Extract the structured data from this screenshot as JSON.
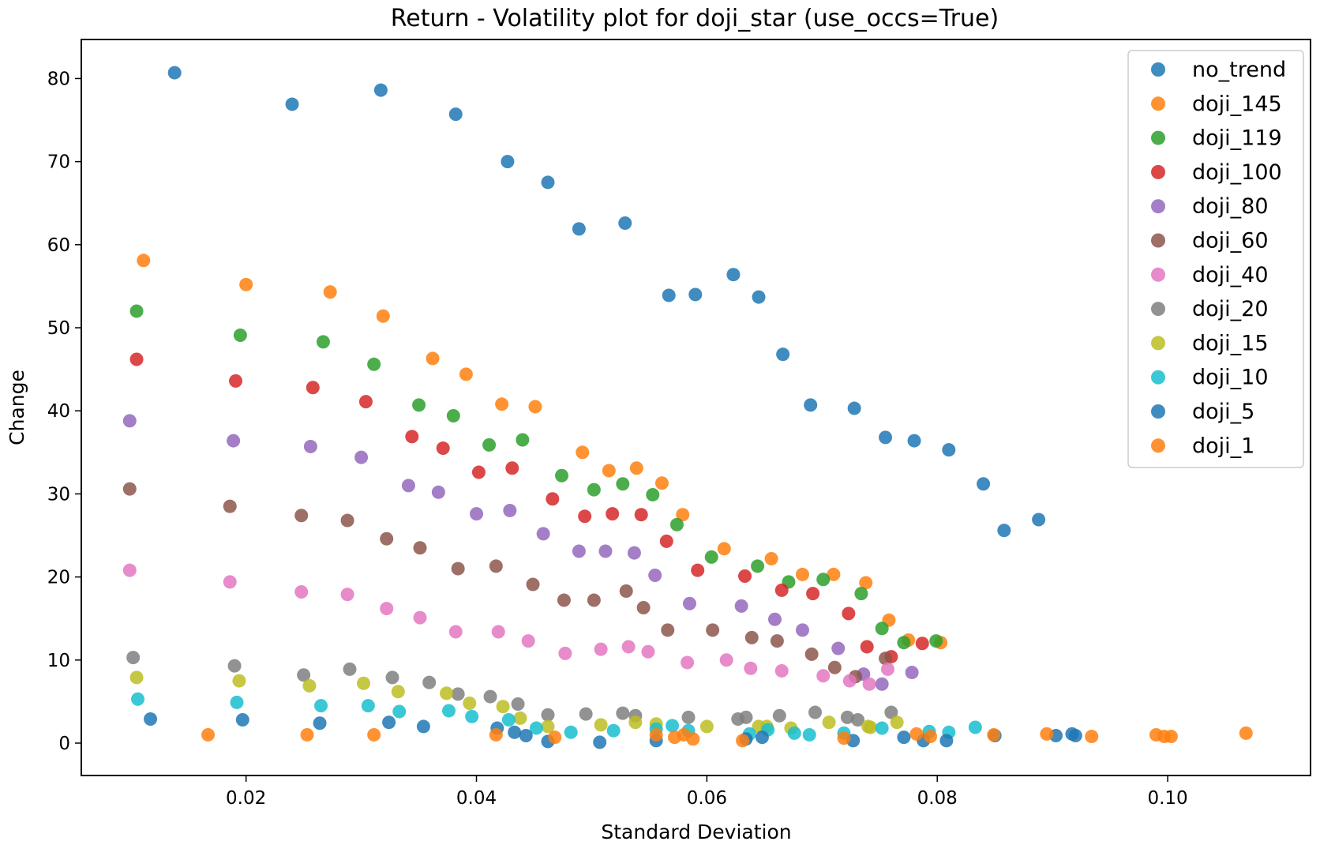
{
  "chart_data": {
    "type": "scatter",
    "title": "Return - Volatility plot for doji_star (use_occs=True)",
    "xlabel": "Standard Deviation",
    "ylabel": "Change",
    "xlim": [
      0.0057,
      0.1124
    ],
    "ylim": [
      -3.9,
      84.7
    ],
    "x_ticks": [
      "0.02",
      "0.04",
      "0.06",
      "0.08",
      "0.10"
    ],
    "y_ticks": [
      "0",
      "10",
      "20",
      "30",
      "40",
      "50",
      "60",
      "70",
      "80"
    ],
    "grid": false,
    "legend_position": "top-right",
    "series": [
      {
        "name": "no_trend",
        "color": "#1f77b4",
        "points": [
          [
            0.0138,
            80.7
          ],
          [
            0.024,
            76.9
          ],
          [
            0.0317,
            78.6
          ],
          [
            0.0382,
            75.7
          ],
          [
            0.0427,
            70.0
          ],
          [
            0.0462,
            67.5
          ],
          [
            0.0489,
            61.9
          ],
          [
            0.0529,
            62.6
          ],
          [
            0.0567,
            53.9
          ],
          [
            0.059,
            54.0
          ],
          [
            0.0623,
            56.4
          ],
          [
            0.0645,
            53.7
          ],
          [
            0.0666,
            46.8
          ],
          [
            0.069,
            40.7
          ],
          [
            0.0728,
            40.3
          ],
          [
            0.0755,
            36.8
          ],
          [
            0.078,
            36.4
          ],
          [
            0.081,
            35.3
          ],
          [
            0.084,
            31.2
          ],
          [
            0.0858,
            25.6
          ],
          [
            0.0888,
            26.9
          ]
        ]
      },
      {
        "name": "doji_145",
        "color": "#ff7f0e",
        "points": [
          [
            0.0111,
            58.1
          ],
          [
            0.02,
            55.2
          ],
          [
            0.0273,
            54.3
          ],
          [
            0.0319,
            51.4
          ],
          [
            0.0362,
            46.3
          ],
          [
            0.0391,
            44.4
          ],
          [
            0.0422,
            40.8
          ],
          [
            0.0451,
            40.5
          ],
          [
            0.0492,
            35.0
          ],
          [
            0.0515,
            32.8
          ],
          [
            0.0539,
            33.1
          ],
          [
            0.0561,
            31.3
          ],
          [
            0.0579,
            27.5
          ],
          [
            0.0615,
            23.4
          ],
          [
            0.0656,
            22.2
          ],
          [
            0.0683,
            20.3
          ],
          [
            0.071,
            20.3
          ],
          [
            0.0738,
            19.3
          ],
          [
            0.0758,
            14.8
          ],
          [
            0.0775,
            12.4
          ],
          [
            0.0803,
            12.1
          ]
        ]
      },
      {
        "name": "doji_119",
        "color": "#2ca02c",
        "points": [
          [
            0.0105,
            52.0
          ],
          [
            0.0195,
            49.1
          ],
          [
            0.0267,
            48.3
          ],
          [
            0.0311,
            45.6
          ],
          [
            0.035,
            40.7
          ],
          [
            0.038,
            39.4
          ],
          [
            0.0411,
            35.9
          ],
          [
            0.044,
            36.5
          ],
          [
            0.0474,
            32.2
          ],
          [
            0.0502,
            30.5
          ],
          [
            0.0527,
            31.2
          ],
          [
            0.0553,
            29.9
          ],
          [
            0.0574,
            26.3
          ],
          [
            0.0604,
            22.4
          ],
          [
            0.0644,
            21.3
          ],
          [
            0.0671,
            19.4
          ],
          [
            0.0701,
            19.7
          ],
          [
            0.0734,
            18.0
          ],
          [
            0.0752,
            13.8
          ],
          [
            0.0771,
            12.1
          ],
          [
            0.0799,
            12.3
          ]
        ]
      },
      {
        "name": "doji_100",
        "color": "#d62728",
        "points": [
          [
            0.0105,
            46.2
          ],
          [
            0.0191,
            43.6
          ],
          [
            0.0258,
            42.8
          ],
          [
            0.0304,
            41.1
          ],
          [
            0.0344,
            36.9
          ],
          [
            0.0371,
            35.5
          ],
          [
            0.0402,
            32.6
          ],
          [
            0.0431,
            33.1
          ],
          [
            0.0466,
            29.4
          ],
          [
            0.0494,
            27.3
          ],
          [
            0.0518,
            27.6
          ],
          [
            0.0543,
            27.5
          ],
          [
            0.0565,
            24.3
          ],
          [
            0.0592,
            20.8
          ],
          [
            0.0633,
            20.1
          ],
          [
            0.0665,
            18.4
          ],
          [
            0.0692,
            18.0
          ],
          [
            0.0723,
            15.6
          ],
          [
            0.0739,
            11.6
          ],
          [
            0.076,
            10.4
          ],
          [
            0.0787,
            12.0
          ]
        ]
      },
      {
        "name": "doji_80",
        "color": "#9467bd",
        "points": [
          [
            0.0099,
            38.8
          ],
          [
            0.0189,
            36.4
          ],
          [
            0.0256,
            35.7
          ],
          [
            0.03,
            34.4
          ],
          [
            0.0341,
            31.0
          ],
          [
            0.0367,
            30.2
          ],
          [
            0.04,
            27.6
          ],
          [
            0.0429,
            28.0
          ],
          [
            0.0458,
            25.2
          ],
          [
            0.0489,
            23.1
          ],
          [
            0.0512,
            23.1
          ],
          [
            0.0537,
            22.9
          ],
          [
            0.0555,
            20.2
          ],
          [
            0.0585,
            16.8
          ],
          [
            0.063,
            16.5
          ],
          [
            0.0659,
            14.9
          ],
          [
            0.0683,
            13.6
          ],
          [
            0.0714,
            11.4
          ],
          [
            0.0736,
            8.3
          ],
          [
            0.0752,
            7.1
          ],
          [
            0.0778,
            8.5
          ]
        ]
      },
      {
        "name": "doji_60",
        "color": "#8c564b",
        "points": [
          [
            0.0099,
            30.6
          ],
          [
            0.0186,
            28.5
          ],
          [
            0.0248,
            27.4
          ],
          [
            0.0288,
            26.8
          ],
          [
            0.0322,
            24.6
          ],
          [
            0.0351,
            23.5
          ],
          [
            0.0384,
            21.0
          ],
          [
            0.0417,
            21.3
          ],
          [
            0.0449,
            19.1
          ],
          [
            0.0476,
            17.2
          ],
          [
            0.0502,
            17.2
          ],
          [
            0.053,
            18.3
          ],
          [
            0.0545,
            16.3
          ],
          [
            0.0566,
            13.6
          ],
          [
            0.0605,
            13.6
          ],
          [
            0.0639,
            12.7
          ],
          [
            0.0661,
            12.3
          ],
          [
            0.0691,
            10.7
          ],
          [
            0.0729,
            8.0
          ],
          [
            0.0711,
            9.1
          ],
          [
            0.0755,
            10.2
          ]
        ]
      },
      {
        "name": "doji_40",
        "color": "#e377c2",
        "points": [
          [
            0.0099,
            20.8
          ],
          [
            0.0186,
            19.4
          ],
          [
            0.0248,
            18.2
          ],
          [
            0.0288,
            17.9
          ],
          [
            0.0322,
            16.2
          ],
          [
            0.0351,
            15.1
          ],
          [
            0.0382,
            13.4
          ],
          [
            0.0419,
            13.4
          ],
          [
            0.0445,
            12.3
          ],
          [
            0.0477,
            10.8
          ],
          [
            0.0508,
            11.3
          ],
          [
            0.0532,
            11.6
          ],
          [
            0.0549,
            11.0
          ],
          [
            0.0583,
            9.7
          ],
          [
            0.0617,
            10.0
          ],
          [
            0.0638,
            9.0
          ],
          [
            0.0665,
            8.7
          ],
          [
            0.0701,
            8.1
          ],
          [
            0.0724,
            7.5
          ],
          [
            0.0741,
            7.1
          ],
          [
            0.0757,
            8.9
          ]
        ]
      },
      {
        "name": "doji_20",
        "color": "#7f7f7f",
        "points": [
          [
            0.0102,
            10.3
          ],
          [
            0.019,
            9.3
          ],
          [
            0.025,
            8.2
          ],
          [
            0.029,
            8.9
          ],
          [
            0.0327,
            7.9
          ],
          [
            0.0359,
            7.3
          ],
          [
            0.0384,
            5.9
          ],
          [
            0.0412,
            5.6
          ],
          [
            0.0436,
            4.7
          ],
          [
            0.0462,
            3.4
          ],
          [
            0.0495,
            3.5
          ],
          [
            0.0527,
            3.6
          ],
          [
            0.0538,
            3.3
          ],
          [
            0.0584,
            3.1
          ],
          [
            0.0627,
            2.9
          ],
          [
            0.0634,
            3.1
          ],
          [
            0.0663,
            3.3
          ],
          [
            0.0694,
            3.7
          ],
          [
            0.0722,
            3.1
          ],
          [
            0.0731,
            2.8
          ],
          [
            0.076,
            3.7
          ]
        ]
      },
      {
        "name": "doji_15",
        "color": "#bcbd22",
        "points": [
          [
            0.0105,
            7.9
          ],
          [
            0.0194,
            7.5
          ],
          [
            0.0255,
            6.9
          ],
          [
            0.0302,
            7.2
          ],
          [
            0.0332,
            6.2
          ],
          [
            0.0374,
            6.0
          ],
          [
            0.0394,
            4.8
          ],
          [
            0.0423,
            4.4
          ],
          [
            0.0438,
            3.0
          ],
          [
            0.0462,
            2.0
          ],
          [
            0.0508,
            2.2
          ],
          [
            0.0538,
            2.5
          ],
          [
            0.0556,
            2.3
          ],
          [
            0.06,
            2.0
          ],
          [
            0.0645,
            2.0
          ],
          [
            0.0652,
            2.0
          ],
          [
            0.0673,
            1.8
          ],
          [
            0.0706,
            2.5
          ],
          [
            0.074,
            2.0
          ],
          [
            0.0742,
            1.9
          ],
          [
            0.0765,
            2.5
          ]
        ]
      },
      {
        "name": "doji_10",
        "color": "#17becf",
        "points": [
          [
            0.0106,
            5.3
          ],
          [
            0.0192,
            4.9
          ],
          [
            0.0265,
            4.5
          ],
          [
            0.0306,
            4.5
          ],
          [
            0.0333,
            3.8
          ],
          [
            0.0376,
            3.9
          ],
          [
            0.0396,
            3.2
          ],
          [
            0.0428,
            2.8
          ],
          [
            0.0452,
            1.8
          ],
          [
            0.0482,
            1.3
          ],
          [
            0.0519,
            1.5
          ],
          [
            0.0556,
            1.7
          ],
          [
            0.057,
            2.1
          ],
          [
            0.0584,
            1.5
          ],
          [
            0.0637,
            1.1
          ],
          [
            0.0653,
            1.6
          ],
          [
            0.0676,
            1.2
          ],
          [
            0.0689,
            1.0
          ],
          [
            0.0719,
            1.2
          ],
          [
            0.0752,
            1.8
          ],
          [
            0.0793,
            1.4
          ],
          [
            0.081,
            1.3
          ],
          [
            0.0833,
            1.9
          ]
        ]
      },
      {
        "name": "doji_5",
        "color": "#1f77b4",
        "points": [
          [
            0.0117,
            2.9
          ],
          [
            0.0197,
            2.8
          ],
          [
            0.0264,
            2.4
          ],
          [
            0.0324,
            2.5
          ],
          [
            0.0354,
            2.0
          ],
          [
            0.0418,
            1.8
          ],
          [
            0.0433,
            1.3
          ],
          [
            0.0443,
            0.9
          ],
          [
            0.0462,
            0.2
          ],
          [
            0.0507,
            0.1
          ],
          [
            0.0556,
            0.3
          ],
          [
            0.0634,
            0.5
          ],
          [
            0.0648,
            0.7
          ],
          [
            0.0727,
            0.3
          ],
          [
            0.0771,
            0.7
          ],
          [
            0.0788,
            0.3
          ],
          [
            0.0808,
            0.3
          ],
          [
            0.085,
            0.9
          ],
          [
            0.0903,
            0.9
          ],
          [
            0.0917,
            1.1
          ],
          [
            0.092,
            0.9
          ]
        ]
      },
      {
        "name": "doji_1",
        "color": "#ff7f0e",
        "points": [
          [
            0.0167,
            1.0
          ],
          [
            0.0253,
            1.0
          ],
          [
            0.0311,
            1.0
          ],
          [
            0.0417,
            1.0
          ],
          [
            0.0468,
            0.7
          ],
          [
            0.0556,
            1.0
          ],
          [
            0.0572,
            0.7
          ],
          [
            0.058,
            1.0
          ],
          [
            0.0588,
            0.5
          ],
          [
            0.0631,
            0.3
          ],
          [
            0.0719,
            0.6
          ],
          [
            0.0782,
            1.1
          ],
          [
            0.0794,
            0.8
          ],
          [
            0.0849,
            1.0
          ],
          [
            0.0895,
            1.1
          ],
          [
            0.0934,
            0.8
          ],
          [
            0.099,
            1.0
          ],
          [
            0.0997,
            0.8
          ],
          [
            0.1003,
            0.8
          ],
          [
            0.1068,
            1.2
          ]
        ]
      }
    ]
  }
}
